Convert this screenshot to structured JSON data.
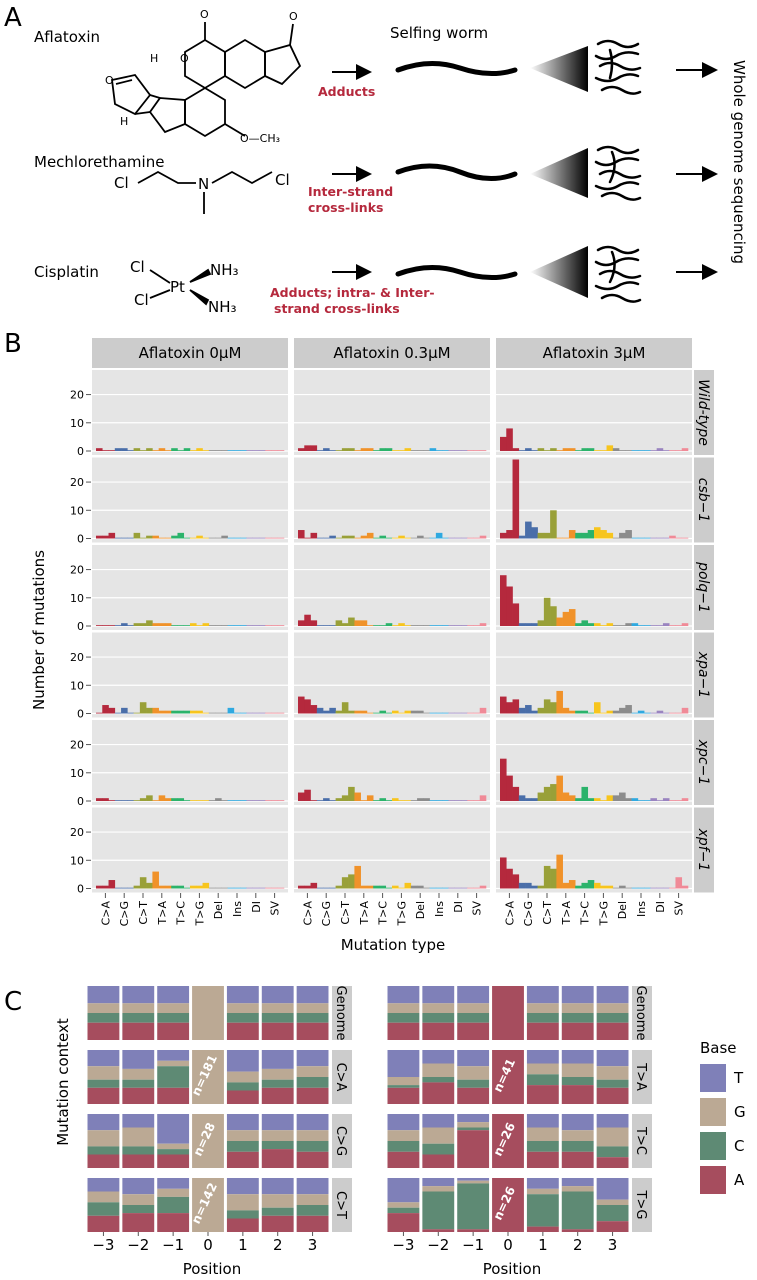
{
  "panels": {
    "a": "A",
    "b": "B",
    "c": "C"
  },
  "panel_a": {
    "selfing_worm": "Selfing worm",
    "wgs": "Whole genome sequencing",
    "rows": [
      {
        "name": "Aflatoxin",
        "effect_lines": [
          "Adducts"
        ]
      },
      {
        "name": "Mechlorethamine",
        "effect_lines": [
          "Inter-strand",
          "cross-links"
        ]
      },
      {
        "name": "Cisplatin",
        "effect_lines": [
          "Adducts; intra- & Inter-",
          "strand cross-links"
        ]
      }
    ],
    "chem_labels": {
      "och3": "O—CH₃",
      "o": "O",
      "h": "H",
      "cl": "Cl",
      "n": "N",
      "pt": "Pt",
      "nh3": "NH₃"
    }
  },
  "colors": {
    "C>A": "#b5293d",
    "C>G": "#4a6ea9",
    "C>T": "#99a038",
    "T>A": "#f0922a",
    "T>C": "#2bb36b",
    "T>G": "#f7c51d",
    "Del": "#8c8c8c",
    "Ins": "#2fa9e0",
    "DI": "#9a84c0",
    "SV": "#f08a97",
    "base_T": "#7f80b8",
    "base_G": "#bba994",
    "base_C": "#5e8a74",
    "base_A": "#a64d5e",
    "panel_bg": "#e5e5e5",
    "strip_bg": "#cccccc"
  },
  "chart_data": [
    {
      "type": "bar",
      "ylabel": "Number of mutations",
      "xlabel": "Mutation type",
      "categories": [
        "C>A",
        "C>G",
        "C>T",
        "T>A",
        "T>C",
        "T>G",
        "Del",
        "Ins",
        "DI",
        "SV"
      ],
      "subtypes_per_category": 3,
      "ylim": [
        0,
        28
      ],
      "yticks": [
        0,
        10,
        20
      ],
      "columns": [
        "Aflatoxin 0μM",
        "Aflatoxin 0.3μM",
        "Aflatoxin 3μM"
      ],
      "rows": [
        "Wild-type",
        "csb−1",
        "polq−1",
        "xpa−1",
        "xpc−1",
        "xpf−1"
      ],
      "values": [
        [
          [
            1,
            0,
            0,
            1,
            1,
            0,
            1,
            0,
            1,
            0,
            1,
            0,
            1,
            0,
            1,
            0,
            1,
            0,
            0,
            0,
            0,
            0,
            0,
            0,
            0,
            0,
            0,
            0,
            0,
            0
          ],
          [
            1,
            2,
            2,
            0,
            1,
            0,
            0,
            1,
            1,
            0,
            1,
            1,
            0,
            1,
            1,
            0,
            0,
            1,
            0,
            0,
            0,
            1,
            0,
            0,
            0,
            0,
            0,
            0,
            0,
            0
          ],
          [
            5,
            8,
            1,
            0,
            1,
            0,
            1,
            0,
            1,
            0,
            1,
            1,
            0,
            1,
            1,
            0,
            0,
            2,
            1,
            0,
            0,
            0,
            0,
            0,
            0,
            1,
            0,
            0,
            0,
            1
          ]
        ],
        [
          [
            1,
            1,
            2,
            0,
            0,
            0,
            2,
            0,
            1,
            1,
            0,
            0,
            1,
            2,
            0,
            0,
            1,
            0,
            0,
            0,
            1,
            0,
            0,
            0,
            0,
            0,
            0,
            0,
            0,
            0
          ],
          [
            3,
            0,
            2,
            0,
            0,
            1,
            0,
            1,
            1,
            0,
            1,
            2,
            0,
            1,
            0,
            0,
            1,
            0,
            0,
            1,
            0,
            0,
            2,
            0,
            0,
            0,
            0,
            0,
            0,
            1
          ],
          [
            2,
            3,
            28,
            1,
            6,
            4,
            2,
            2,
            10,
            0,
            0,
            3,
            2,
            2,
            3,
            4,
            3,
            2,
            0,
            2,
            3,
            0,
            0,
            0,
            0,
            0,
            0,
            1,
            0,
            0
          ]
        ],
        [
          [
            0,
            0,
            0,
            0,
            1,
            0,
            1,
            1,
            2,
            1,
            1,
            1,
            0,
            0,
            0,
            1,
            0,
            1,
            0,
            0,
            0,
            0,
            0,
            0,
            0,
            0,
            0,
            0,
            0,
            0
          ],
          [
            2,
            4,
            2,
            0,
            0,
            0,
            2,
            1,
            3,
            2,
            2,
            0,
            0,
            0,
            1,
            0,
            1,
            0,
            0,
            0,
            0,
            0,
            0,
            0,
            0,
            0,
            0,
            0,
            0,
            1
          ],
          [
            18,
            14,
            8,
            1,
            1,
            1,
            2,
            10,
            7,
            3,
            5,
            6,
            1,
            2,
            1,
            1,
            0,
            1,
            0,
            0,
            1,
            1,
            0,
            0,
            0,
            0,
            1,
            0,
            0,
            1
          ]
        ],
        [
          [
            0,
            3,
            2,
            0,
            2,
            0,
            0,
            4,
            2,
            2,
            1,
            1,
            1,
            1,
            1,
            1,
            1,
            0,
            0,
            0,
            0,
            2,
            0,
            0,
            0,
            0,
            0,
            0,
            0,
            0
          ],
          [
            6,
            5,
            3,
            2,
            1,
            2,
            1,
            4,
            1,
            1,
            1,
            0,
            0,
            1,
            0,
            1,
            0,
            1,
            1,
            1,
            0,
            0,
            0,
            0,
            0,
            0,
            0,
            0,
            0,
            2
          ],
          [
            6,
            4,
            5,
            2,
            3,
            1,
            2,
            5,
            4,
            8,
            2,
            1,
            1,
            1,
            0,
            4,
            0,
            1,
            1,
            2,
            3,
            0,
            1,
            0,
            0,
            1,
            0,
            0,
            0,
            2
          ]
        ],
        [
          [
            1,
            1,
            0,
            0,
            0,
            0,
            0,
            1,
            2,
            0,
            2,
            1,
            1,
            1,
            0,
            0,
            0,
            0,
            0,
            1,
            0,
            0,
            0,
            0,
            0,
            0,
            0,
            0,
            0,
            0
          ],
          [
            3,
            4,
            0,
            0,
            1,
            0,
            1,
            2,
            5,
            3,
            0,
            2,
            0,
            1,
            0,
            1,
            0,
            0,
            0,
            1,
            1,
            0,
            0,
            0,
            0,
            0,
            0,
            0,
            0,
            2
          ],
          [
            15,
            9,
            5,
            2,
            1,
            1,
            3,
            5,
            6,
            9,
            3,
            2,
            1,
            5,
            1,
            1,
            0,
            2,
            2,
            3,
            1,
            1,
            0,
            0,
            1,
            0,
            1,
            0,
            0,
            1
          ]
        ],
        [
          [
            1,
            1,
            3,
            0,
            0,
            0,
            1,
            4,
            2,
            6,
            1,
            1,
            1,
            1,
            0,
            1,
            1,
            2,
            0,
            0,
            0,
            0,
            0,
            0,
            0,
            0,
            0,
            0,
            0,
            0
          ],
          [
            1,
            1,
            2,
            0,
            0,
            0,
            1,
            4,
            5,
            8,
            1,
            1,
            1,
            1,
            0,
            1,
            0,
            2,
            1,
            1,
            0,
            0,
            0,
            0,
            0,
            0,
            0,
            0,
            0,
            1
          ],
          [
            11,
            7,
            5,
            2,
            2,
            1,
            1,
            8,
            7,
            12,
            2,
            3,
            1,
            2,
            3,
            2,
            1,
            1,
            0,
            1,
            0,
            0,
            0,
            0,
            0,
            0,
            0,
            0,
            4,
            1
          ]
        ]
      ]
    },
    {
      "type": "stacked_bar",
      "ylabel": "Mutation context",
      "xlabel": "Position",
      "x": [
        -3,
        -2,
        -1,
        0,
        1,
        2,
        3
      ],
      "tick_labels": [
        "−3",
        "−2",
        "−1",
        "0",
        "1",
        "2",
        "3"
      ],
      "legend_title": "Base",
      "legend": [
        "T",
        "G",
        "C",
        "A"
      ],
      "stack_order_bottom_to_top": [
        "A",
        "C",
        "G",
        "T"
      ],
      "groups": [
        {
          "rows": [
            {
              "label": "Genome",
              "n": "",
              "fractions": [
                [
                  0.32,
                  0.18,
                  0.18,
                  0.32
                ],
                [
                  0.32,
                  0.18,
                  0.18,
                  0.32
                ],
                [
                  0.32,
                  0.18,
                  0.18,
                  0.32
                ],
                [
                  0,
                  1,
                  0,
                  0
                ],
                [
                  0.32,
                  0.18,
                  0.18,
                  0.32
                ],
                [
                  0.32,
                  0.18,
                  0.18,
                  0.32
                ],
                [
                  0.32,
                  0.18,
                  0.18,
                  0.32
                ]
              ]
            },
            {
              "label": "C>A",
              "n": "n=181",
              "fractions": [
                [
                  0.3,
                  0.25,
                  0.15,
                  0.3
                ],
                [
                  0.35,
                  0.2,
                  0.15,
                  0.3
                ],
                [
                  0.2,
                  0.1,
                  0.4,
                  0.3
                ],
                [
                  0,
                  1,
                  0,
                  0
                ],
                [
                  0.4,
                  0.2,
                  0.15,
                  0.25
                ],
                [
                  0.35,
                  0.2,
                  0.15,
                  0.3
                ],
                [
                  0.3,
                  0.2,
                  0.2,
                  0.3
                ]
              ]
            },
            {
              "label": "C>G",
              "n": "n=28",
              "fractions": [
                [
                  0.3,
                  0.3,
                  0.15,
                  0.25
                ],
                [
                  0.25,
                  0.35,
                  0.15,
                  0.25
                ],
                [
                  0.55,
                  0.1,
                  0.1,
                  0.25
                ],
                [
                  0,
                  1,
                  0,
                  0
                ],
                [
                  0.3,
                  0.2,
                  0.2,
                  0.3
                ],
                [
                  0.3,
                  0.2,
                  0.15,
                  0.35
                ],
                [
                  0.3,
                  0.2,
                  0.2,
                  0.3
                ]
              ]
            },
            {
              "label": "C>T",
              "n": "n=142",
              "fractions": [
                [
                  0.25,
                  0.2,
                  0.25,
                  0.3
                ],
                [
                  0.3,
                  0.2,
                  0.15,
                  0.35
                ],
                [
                  0.2,
                  0.15,
                  0.3,
                  0.35
                ],
                [
                  0,
                  1,
                  0,
                  0
                ],
                [
                  0.3,
                  0.3,
                  0.15,
                  0.25
                ],
                [
                  0.3,
                  0.25,
                  0.15,
                  0.3
                ],
                [
                  0.3,
                  0.2,
                  0.2,
                  0.3
                ]
              ]
            }
          ]
        },
        {
          "rows": [
            {
              "label": "Genome",
              "n": "",
              "fractions": [
                [
                  0.32,
                  0.18,
                  0.18,
                  0.32
                ],
                [
                  0.32,
                  0.18,
                  0.18,
                  0.32
                ],
                [
                  0.32,
                  0.18,
                  0.18,
                  0.32
                ],
                [
                  0,
                  0,
                  0,
                  1
                ],
                [
                  0.32,
                  0.18,
                  0.18,
                  0.32
                ],
                [
                  0.32,
                  0.18,
                  0.18,
                  0.32
                ],
                [
                  0.32,
                  0.18,
                  0.18,
                  0.32
                ]
              ]
            },
            {
              "label": "T>A",
              "n": "n=41",
              "fractions": [
                [
                  0.5,
                  0.15,
                  0.05,
                  0.3
                ],
                [
                  0.25,
                  0.25,
                  0.1,
                  0.4
                ],
                [
                  0.3,
                  0.25,
                  0.15,
                  0.3
                ],
                [
                  0,
                  0,
                  0,
                  1
                ],
                [
                  0.25,
                  0.2,
                  0.2,
                  0.35
                ],
                [
                  0.25,
                  0.25,
                  0.15,
                  0.35
                ],
                [
                  0.3,
                  0.25,
                  0.15,
                  0.3
                ]
              ]
            },
            {
              "label": "T>C",
              "n": "n=26",
              "fractions": [
                [
                  0.3,
                  0.2,
                  0.2,
                  0.3
                ],
                [
                  0.25,
                  0.3,
                  0.2,
                  0.25
                ],
                [
                  0.15,
                  0.1,
                  0.05,
                  0.7
                ],
                [
                  0,
                  0,
                  0,
                  1
                ],
                [
                  0.25,
                  0.25,
                  0.2,
                  0.3
                ],
                [
                  0.3,
                  0.2,
                  0.2,
                  0.3
                ],
                [
                  0.25,
                  0.35,
                  0.2,
                  0.2
                ]
              ]
            },
            {
              "label": "T>G",
              "n": "n=26",
              "fractions": [
                [
                  0.45,
                  0.1,
                  0.1,
                  0.35
                ],
                [
                  0.15,
                  0.1,
                  0.7,
                  0.05
                ],
                [
                  0.05,
                  0.05,
                  0.85,
                  0.05
                ],
                [
                  0,
                  0,
                  0,
                  1
                ],
                [
                  0.2,
                  0.1,
                  0.6,
                  0.1
                ],
                [
                  0.15,
                  0.1,
                  0.7,
                  0.05
                ],
                [
                  0.4,
                  0.1,
                  0.3,
                  0.2
                ]
              ]
            }
          ]
        }
      ]
    }
  ]
}
